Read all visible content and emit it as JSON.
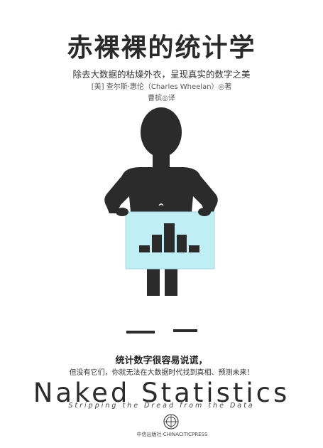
{
  "cover": {
    "title_cn": "赤裸裸的统计学",
    "subtitle_cn": "除去大数据的枯燥外衣，呈现真实的数字之美",
    "authors": "[美] 查尔斯·惠伦（Charles Wheelan）◎著",
    "translator": "曹槟◎译",
    "tagline_line1": "统计数字很容易说谎，",
    "tagline_line2": "但没有它们，你就无法在大数据时代找到真相、预测未来！",
    "title_en": "Naked Statistics",
    "subtitle_en": "Stripping the Dread from the Data",
    "publisher": "中信出版社·CHINACITICPRESS"
  },
  "colors": {
    "figure": "#2b2b2b",
    "panel": "#bfeef5",
    "panel_border": "#9fdbe6",
    "text": "#2a2a2a"
  },
  "icons": {
    "figure": "man-silhouette-icon",
    "histogram": "histogram-icon",
    "publisher_logo": "citic-logo-icon"
  }
}
